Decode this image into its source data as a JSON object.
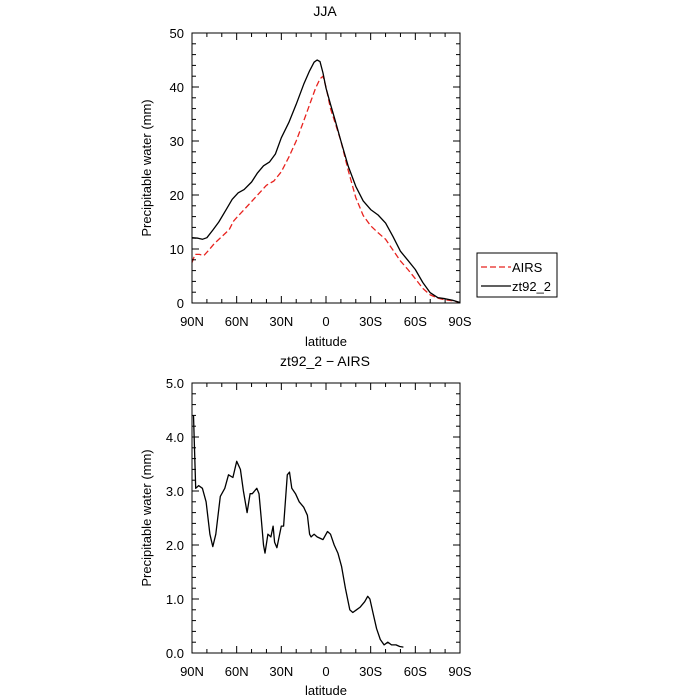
{
  "chart_data": [
    {
      "type": "line",
      "title": "JJA",
      "xlabel": "latitude",
      "ylabel": "Precipitable water (mm)",
      "xlim": [
        90,
        -90
      ],
      "ylim": [
        0,
        50
      ],
      "x_ticks": [
        90,
        60,
        30,
        0,
        -30,
        -60,
        -90
      ],
      "x_tick_labels": [
        "90N",
        "60N",
        "30N",
        "0",
        "30S",
        "60S",
        "90S"
      ],
      "y_ticks": [
        0,
        10,
        20,
        30,
        40,
        50
      ],
      "y_tick_labels": [
        "0",
        "10",
        "20",
        "30",
        "40",
        "50"
      ],
      "legend": "outside-right",
      "series": [
        {
          "name": "AIRS",
          "color": "#e8231f",
          "dash": "dashed",
          "points": [
            [
              90,
              7.5
            ],
            [
              88,
              9
            ],
            [
              85,
              9
            ],
            [
              82,
              8.8
            ],
            [
              79,
              9.7
            ],
            [
              75,
              11
            ],
            [
              70,
              12.3
            ],
            [
              65,
              13.6
            ],
            [
              62,
              15.2
            ],
            [
              58,
              16.4
            ],
            [
              54,
              17.6
            ],
            [
              50,
              18.8
            ],
            [
              45,
              20.3
            ],
            [
              40,
              21.8
            ],
            [
              35,
              22.6
            ],
            [
              30,
              24.3
            ],
            [
              25,
              27
            ],
            [
              20,
              30
            ],
            [
              15,
              33.7
            ],
            [
              10,
              37.5
            ],
            [
              7,
              39.8
            ],
            [
              4,
              41.5
            ],
            [
              2,
              42
            ],
            [
              0,
              40
            ],
            [
              -3,
              36
            ],
            [
              -6,
              33.5
            ],
            [
              -10,
              30
            ],
            [
              -15,
              24.5
            ],
            [
              -20,
              19.5
            ],
            [
              -25,
              16.2
            ],
            [
              -30,
              14.3
            ],
            [
              -35,
              13
            ],
            [
              -40,
              11.8
            ],
            [
              -45,
              9.8
            ],
            [
              -50,
              7.8
            ],
            [
              -55,
              6.2
            ],
            [
              -60,
              4.5
            ],
            [
              -65,
              2.7
            ],
            [
              -70,
              1.5
            ],
            [
              -75,
              0.9
            ],
            [
              -80,
              0.6
            ],
            [
              -85,
              0.4
            ],
            [
              -90,
              0.1
            ]
          ]
        },
        {
          "name": "zt92_2",
          "color": "#000000",
          "dash": "solid",
          "points": [
            [
              90,
              12.1
            ],
            [
              86,
              12
            ],
            [
              83,
              11.8
            ],
            [
              80,
              12.1
            ],
            [
              76,
              13.5
            ],
            [
              72,
              15
            ],
            [
              67,
              17.3
            ],
            [
              63,
              19.2
            ],
            [
              59,
              20.4
            ],
            [
              55,
              21
            ],
            [
              50,
              22.4
            ],
            [
              46,
              24.1
            ],
            [
              42,
              25.4
            ],
            [
              38,
              26.1
            ],
            [
              34,
              27.6
            ],
            [
              30,
              30.6
            ],
            [
              25,
              33.4
            ],
            [
              20,
              36.8
            ],
            [
              15,
              40.5
            ],
            [
              11,
              43
            ],
            [
              8,
              44.6
            ],
            [
              6,
              45
            ],
            [
              4,
              44.7
            ],
            [
              2,
              42.6
            ],
            [
              0,
              39.8
            ],
            [
              -3,
              36.8
            ],
            [
              -6,
              34
            ],
            [
              -10,
              30
            ],
            [
              -15,
              25.3
            ],
            [
              -20,
              21.6
            ],
            [
              -25,
              18.9
            ],
            [
              -30,
              17.3
            ],
            [
              -35,
              16.3
            ],
            [
              -40,
              14.8
            ],
            [
              -45,
              12.3
            ],
            [
              -50,
              9.6
            ],
            [
              -55,
              7.9
            ],
            [
              -60,
              6.2
            ],
            [
              -65,
              3.8
            ],
            [
              -70,
              1.9
            ],
            [
              -75,
              1
            ],
            [
              -80,
              0.8
            ],
            [
              -85,
              0.5
            ],
            [
              -90,
              0.1
            ]
          ]
        }
      ]
    },
    {
      "type": "line",
      "title": "zt92_2 − AIRS",
      "xlabel": "latitude",
      "ylabel": "Precipitable water (mm)",
      "xlim": [
        90,
        -90
      ],
      "ylim": [
        0,
        5
      ],
      "x_ticks": [
        90,
        60,
        30,
        0,
        -30,
        -60,
        -90
      ],
      "x_tick_labels": [
        "90N",
        "60N",
        "30N",
        "0",
        "30S",
        "60S",
        "90S"
      ],
      "y_ticks": [
        0,
        1,
        2,
        3,
        4,
        5
      ],
      "y_tick_labels": [
        "0.0",
        "1.0",
        "2.0",
        "3.0",
        "4.0",
        "5.0"
      ],
      "series": [
        {
          "name": "",
          "color": "#000000",
          "dash": "solid",
          "points": [
            [
              89,
              4.4
            ],
            [
              87.5,
              3.05
            ],
            [
              85.5,
              3.1
            ],
            [
              83,
              3.05
            ],
            [
              80.5,
              2.8
            ],
            [
              78,
              2.2
            ],
            [
              76,
              1.97
            ],
            [
              74,
              2.2
            ],
            [
              71,
              2.9
            ],
            [
              68,
              3.05
            ],
            [
              65.5,
              3.3
            ],
            [
              62.5,
              3.25
            ],
            [
              60,
              3.55
            ],
            [
              57.5,
              3.4
            ],
            [
              55.5,
              3.0
            ],
            [
              53,
              2.6
            ],
            [
              51,
              2.95
            ],
            [
              49.5,
              2.95
            ],
            [
              46.5,
              3.05
            ],
            [
              45,
              2.95
            ],
            [
              43.5,
              2.5
            ],
            [
              42,
              2.0
            ],
            [
              41,
              1.85
            ],
            [
              39,
              2.2
            ],
            [
              37,
              2.15
            ],
            [
              35.5,
              2.35
            ],
            [
              34.5,
              2.05
            ],
            [
              33,
              1.95
            ],
            [
              30,
              2.35
            ],
            [
              28.5,
              2.35
            ],
            [
              26,
              3.3
            ],
            [
              24.5,
              3.35
            ],
            [
              23,
              3.05
            ],
            [
              20.5,
              2.95
            ],
            [
              18,
              2.8
            ],
            [
              15,
              2.7
            ],
            [
              12.5,
              2.55
            ],
            [
              11,
              2.2
            ],
            [
              10,
              2.15
            ],
            [
              8,
              2.2
            ],
            [
              6,
              2.15
            ],
            [
              2,
              2.1
            ],
            [
              -1,
              2.25
            ],
            [
              -3,
              2.2
            ],
            [
              -5.5,
              2.0
            ],
            [
              -8,
              1.85
            ],
            [
              -10.5,
              1.6
            ],
            [
              -13,
              1.2
            ],
            [
              -16,
              0.8
            ],
            [
              -18,
              0.75
            ],
            [
              -20.5,
              0.8
            ],
            [
              -23,
              0.85
            ],
            [
              -26,
              0.95
            ],
            [
              -28,
              1.05
            ],
            [
              -29.5,
              1.0
            ],
            [
              -31.5,
              0.75
            ],
            [
              -34,
              0.45
            ],
            [
              -36.5,
              0.25
            ],
            [
              -39,
              0.15
            ],
            [
              -41.5,
              0.2
            ],
            [
              -44,
              0.15
            ],
            [
              -47,
              0.15
            ],
            [
              -49.5,
              0.12
            ],
            [
              -52,
              0.11
            ]
          ]
        }
      ]
    }
  ]
}
